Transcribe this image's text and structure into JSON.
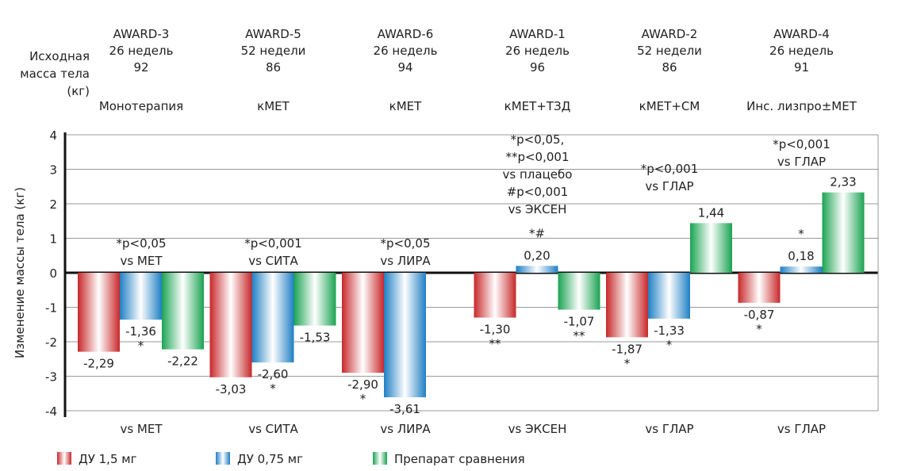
{
  "chart_data": {
    "type": "bar",
    "ylabel": "Изменение массы тела (кг)",
    "ylim": [
      -4,
      4
    ],
    "yticks": [
      "4",
      "3",
      "2",
      "1",
      "0",
      "-1",
      "-2",
      "-3",
      "-4"
    ],
    "grid": true,
    "row_label": "Исходная масса тела (кг)",
    "row_label_lines": [
      "Исходная",
      "масса тела",
      "(кг)"
    ],
    "series": [
      {
        "name": "ДУ 1,5 мг",
        "color": "#c8282a"
      },
      {
        "name": "ДУ 0,75 мг",
        "color": "#1f7fc4"
      },
      {
        "name": "Препарат сравнения",
        "color": "#1aa352"
      }
    ],
    "legend_position": "bottom-left",
    "groups": [
      {
        "study": "AWARD-3",
        "duration": "26 недель",
        "baseline": "92",
        "therapy": "Монотерапия",
        "comparator": "vs МЕТ",
        "note": [
          "*p<0,05",
          "vs МЕТ"
        ],
        "bars": [
          {
            "value": -2.29,
            "label": "-2,29",
            "stars": ""
          },
          {
            "value": -1.36,
            "label": "-1,36",
            "stars": "*"
          },
          {
            "value": -2.22,
            "label": "-2,22",
            "stars": ""
          }
        ]
      },
      {
        "study": "AWARD-5",
        "duration": "52 недели",
        "baseline": "86",
        "therapy": "кМЕТ",
        "comparator": "vs СИТА",
        "note": [
          "*p<0,001",
          "vs СИТА"
        ],
        "bars": [
          {
            "value": -3.03,
            "label": "-3,03",
            "stars": ""
          },
          {
            "value": -2.6,
            "label": "-2,60",
            "stars": "*"
          },
          {
            "value": -1.53,
            "label": "-1,53",
            "stars": ""
          }
        ]
      },
      {
        "study": "AWARD-6",
        "duration": "26 недель",
        "baseline": "94",
        "therapy": "кМЕТ",
        "comparator": "vs ЛИРА",
        "note": [
          "*p<0,05",
          "vs ЛИРА"
        ],
        "bars": [
          {
            "value": -2.9,
            "label": "-2,90",
            "stars": "*"
          },
          {
            "value": -3.61,
            "label": "-3,61",
            "stars": ""
          }
        ]
      },
      {
        "study": "AWARD-1",
        "duration": "26 недель",
        "baseline": "96",
        "therapy": "кМЕТ+ТЗД",
        "comparator": "vs ЭКСЕН",
        "note": [
          "*p<0,05,",
          "**p<0,001",
          "vs плацебо",
          "#p<0,001",
          "vs ЭКСЕН"
        ],
        "bars": [
          {
            "value": -1.3,
            "label": "-1,30",
            "stars": "**"
          },
          {
            "value": 0.2,
            "label": "0,20",
            "stars": "*#"
          },
          {
            "value": -1.07,
            "label": "-1,07",
            "stars": "**"
          }
        ]
      },
      {
        "study": "AWARD-2",
        "duration": "52 недели",
        "baseline": "86",
        "therapy": "кМЕТ+СМ",
        "comparator": "vs ГЛАР",
        "note": [
          "*p<0,001",
          "vs ГЛАР"
        ],
        "bars": [
          {
            "value": -1.87,
            "label": "-1,87",
            "stars": "*"
          },
          {
            "value": -1.33,
            "label": "-1,33",
            "stars": "*"
          },
          {
            "value": 1.44,
            "label": "1,44",
            "stars": ""
          }
        ]
      },
      {
        "study": "AWARD-4",
        "duration": "26 недель",
        "baseline": "91",
        "therapy": "Инс. лизпро±МЕТ",
        "comparator": "vs ГЛАР",
        "note": [
          "*p<0,001",
          "vs ГЛАР"
        ],
        "bars": [
          {
            "value": -0.87,
            "label": "-0,87",
            "stars": "*"
          },
          {
            "value": 0.18,
            "label": "0,18",
            "stars": "*"
          },
          {
            "value": 2.33,
            "label": "2,33",
            "stars": ""
          }
        ]
      }
    ]
  }
}
